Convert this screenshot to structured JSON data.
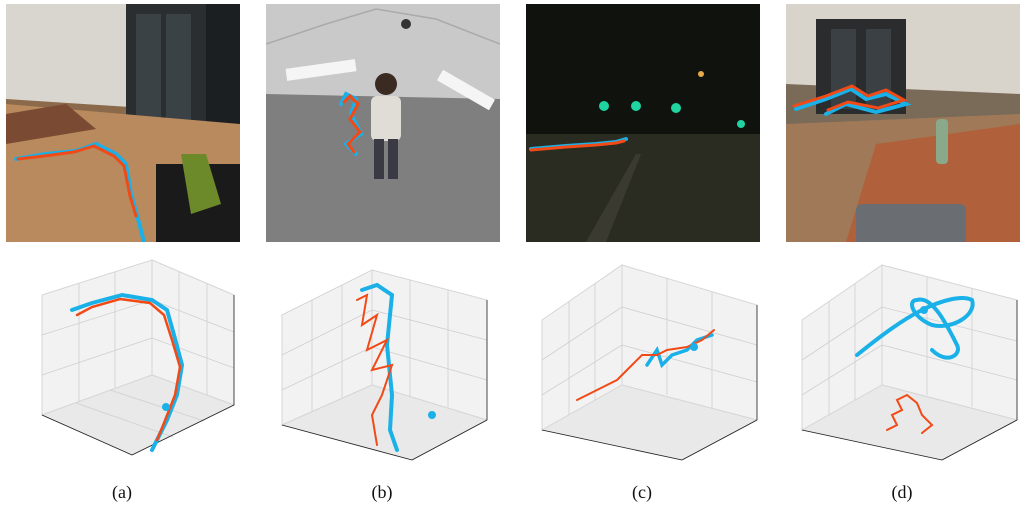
{
  "colors": {
    "ground_truth": "#1ab0e8",
    "estimate": "#f24a17",
    "axis_grid": "#cfcfcf"
  },
  "panels": [
    {
      "id": "a",
      "caption": "(a)"
    },
    {
      "id": "b",
      "caption": "(b)"
    },
    {
      "id": "c",
      "caption": "(c)"
    },
    {
      "id": "d",
      "caption": "(d)"
    }
  ]
}
